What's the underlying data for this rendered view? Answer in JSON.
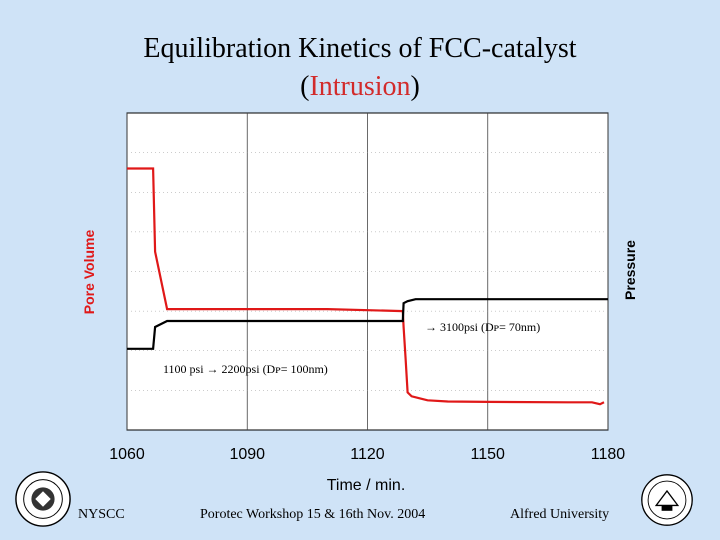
{
  "title": {
    "line1": "Equilibration Kinetics of FCC-catalyst",
    "line2_open": "(",
    "line2_accent": "Intrusion",
    "line2_close": ")"
  },
  "colors": {
    "background": "#cfe3f7",
    "pore_volume": "#e01818",
    "pressure": "#000000",
    "accent_text": "#d22b2b"
  },
  "footer": {
    "left": "NYSCC",
    "center": "Porotec Workshop 15 & 16th Nov. 2004",
    "right": "Alfred University"
  },
  "chart_data": {
    "type": "line",
    "xlabel": "Time / min.",
    "ylabel_left": "Pore Volume",
    "ylabel_right": "Pressure",
    "xlim": [
      1060,
      1180
    ],
    "xticks": [
      "1060",
      "1090",
      "1120",
      "1150",
      "1180"
    ],
    "grid": true,
    "series": [
      {
        "key": "pore_volume",
        "x": [
          1060,
          1066,
          1066.5,
          1067,
          1070,
          1090,
          1110,
          1128.8,
          1129,
          1129.5,
          1130,
          1131,
          1133,
          1135,
          1140,
          1150,
          1170,
          1176,
          1178,
          1179
        ],
        "y": [
          6.6,
          6.6,
          6.6,
          4.5,
          3.05,
          3.05,
          3.05,
          3.0,
          2.6,
          1.8,
          0.95,
          0.85,
          0.8,
          0.75,
          0.72,
          0.71,
          0.7,
          0.7,
          0.65,
          0.7
        ]
      },
      {
        "key": "pressure",
        "x": [
          1060,
          1066.5,
          1067,
          1070,
          1090,
          1110,
          1128.8,
          1129,
          1130,
          1132,
          1150,
          1170,
          1180
        ],
        "y": [
          2.05,
          2.05,
          2.6,
          2.75,
          2.75,
          2.75,
          2.75,
          3.2,
          3.25,
          3.3,
          3.3,
          3.3,
          3.3
        ]
      }
    ],
    "annotations": [
      {
        "text": "→  3100psi (Dᴘ= 70nm)"
      },
      {
        "text": "1100 psi   →   2200psi (Dᴘ= 100nm)"
      }
    ]
  }
}
